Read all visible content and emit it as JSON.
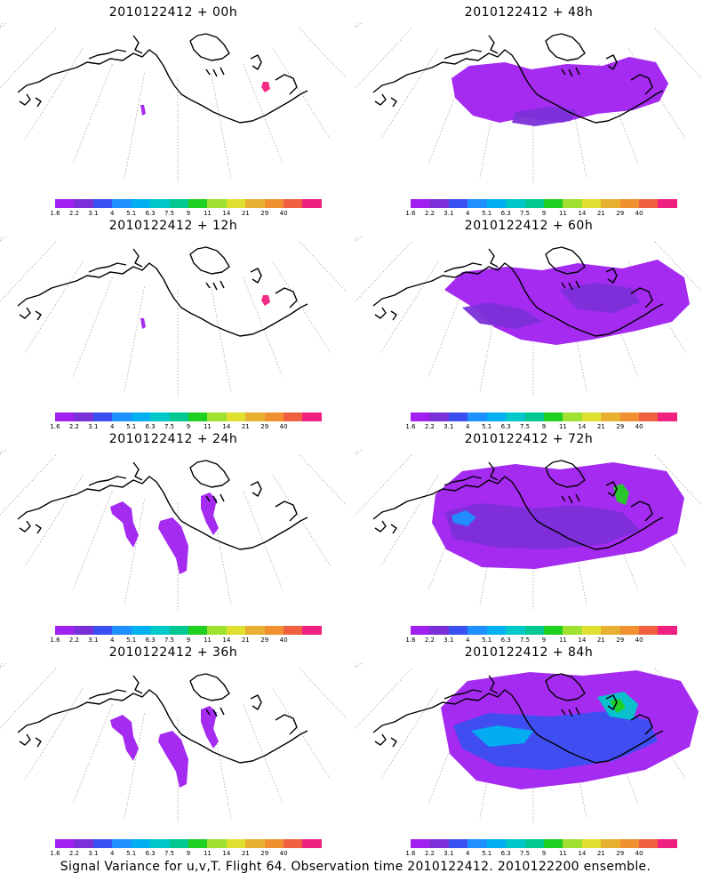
{
  "panels": [
    {
      "title": "2010122412 + 00h",
      "col": 0,
      "row": 0,
      "level": 0
    },
    {
      "title": "2010122412 + 48h",
      "col": 1,
      "row": 0,
      "level": 2
    },
    {
      "title": "2010122412 + 12h",
      "col": 0,
      "row": 1,
      "level": 0
    },
    {
      "title": "2010122412 + 60h",
      "col": 1,
      "row": 1,
      "level": 3
    },
    {
      "title": "2010122412 + 24h",
      "col": 0,
      "row": 2,
      "level": 1
    },
    {
      "title": "2010122412 + 72h",
      "col": 1,
      "row": 2,
      "level": 4
    },
    {
      "title": "2010122412 + 36h",
      "col": 0,
      "row": 3,
      "level": 1
    },
    {
      "title": "2010122412 + 84h",
      "col": 1,
      "row": 3,
      "level": 5
    }
  ],
  "colorbar": {
    "labels": [
      "1.6",
      "2.2",
      "3.1",
      "4",
      "5.1",
      "6.3",
      "7.5",
      "9",
      "11",
      "14",
      "21",
      "29",
      "40"
    ],
    "colors": [
      "#a020f0",
      "#7b2fd8",
      "#3a50f0",
      "#1e90ff",
      "#00b0f0",
      "#00c8c8",
      "#00c890",
      "#20d020",
      "#a0e030",
      "#e0e030",
      "#e8b030",
      "#f09030",
      "#f06040",
      "#f02080"
    ]
  },
  "footer": "Signal Variance for u,v,T. Flight 64. Observation time 2010122412. 2010122200 ensemble."
}
